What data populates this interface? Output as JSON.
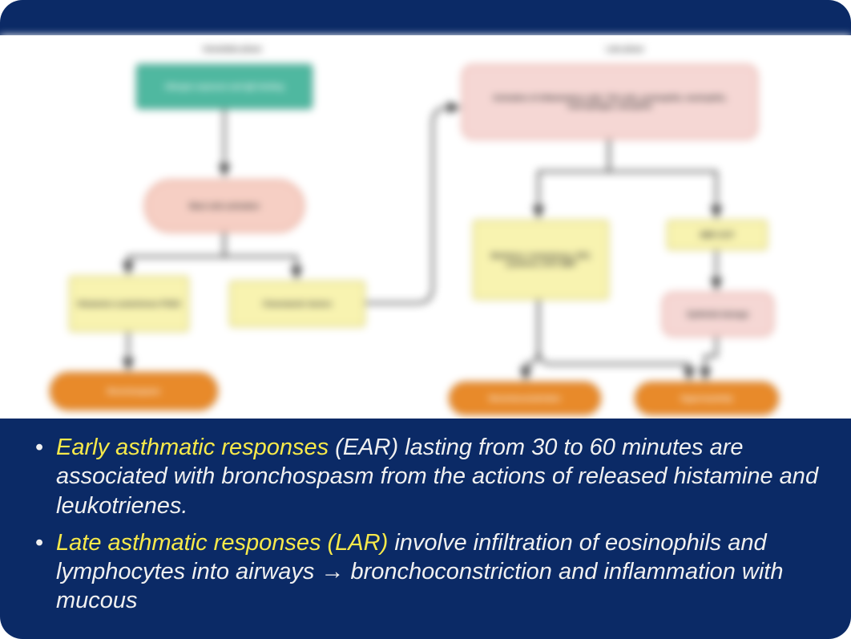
{
  "colors": {
    "navy": "#0b2a66",
    "body": "#f0f0f0",
    "highlight": "#f7e94a",
    "teal_fill": "#4fb8a0",
    "teal_border": "#2a8f78",
    "peach_fill": "#f6cfc4",
    "peach_border": "#e39a87",
    "yellow_fill": "#f8f3b0",
    "yellow_border": "#d8cf6e",
    "orange_fill": "#e88a2a",
    "orange_border": "#c96f16",
    "pink_fill": "#f5d7d4",
    "pink_border": "#e6a79e",
    "arrow": "#333333"
  },
  "diagram": {
    "left_title": "Immediate phase",
    "right_title": "Late phase",
    "nodes": {
      "teal": "Allergen exposure\nand IgE binding",
      "mast": "Mast cells\nactivation",
      "hist": "Histamine\nLeukotrienes\nPGD2",
      "chemo": "Chemotactic\nfactors",
      "broncho": "Bronchospasm",
      "pink_top": "Activation of\ninflammatory cells: Th2 cells,\neosinophils, neutrophils,\nmacrophages, basophils",
      "yellow_mid": "Mediators:\nleukotrienes, PAF,\ncytokines, ECP,\nMBP",
      "mbp": "MBP, ECP",
      "epith": "Epithelial\ndamage",
      "bc2": "Bronchoconstriction",
      "hyper": "Hyperreactivity"
    }
  },
  "bullets": {
    "b1_hl": "Early asthmatic responses ",
    "b1_rest": "(EAR) lasting from 30 to 60 minutes are associated with bronchospasm from the actions of released histamine and leukotrienes.",
    "b2_hl": "Late asthmatic responses (LAR) ",
    "b2_rest": "involve infiltration of eosinophils and lymphocytes into airways → bronchoconstriction and inflammation with mucous"
  },
  "layout": {
    "text_panel_height": 275
  }
}
